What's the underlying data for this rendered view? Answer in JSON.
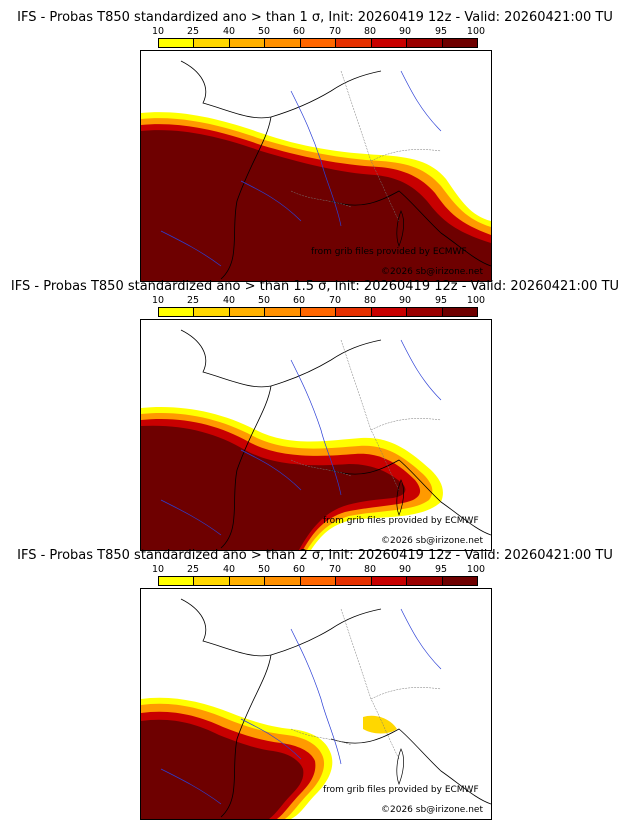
{
  "legend": {
    "labels": [
      "10",
      "25",
      "40",
      "50",
      "60",
      "70",
      "80",
      "90",
      "95",
      "100"
    ],
    "colors": [
      "#ffff00",
      "#ffd700",
      "#ffb000",
      "#ff9000",
      "#ff6600",
      "#e63000",
      "#c80000",
      "#9a0000",
      "#6e0000"
    ]
  },
  "credits": {
    "source": "from grib files provided by ECMWF",
    "copyright": "©2026 sb@irizone.net"
  },
  "panels": [
    {
      "title": "IFS - Probas T850  standardized ano > than 1 σ, Init: 20260419 12z - Valid: 20260421:00 TU",
      "threshold_sigma": 1
    },
    {
      "title": "IFS - Probas T850  standardized ano > than 1.5 σ, Init: 20260419 12z - Valid: 20260421:00 TU",
      "threshold_sigma": 1.5
    },
    {
      "title": "IFS - Probas T850  standardized ano > than 2 σ, Init: 20260419 12z - Valid: 20260421:00 TU",
      "threshold_sigma": 2
    }
  ]
}
